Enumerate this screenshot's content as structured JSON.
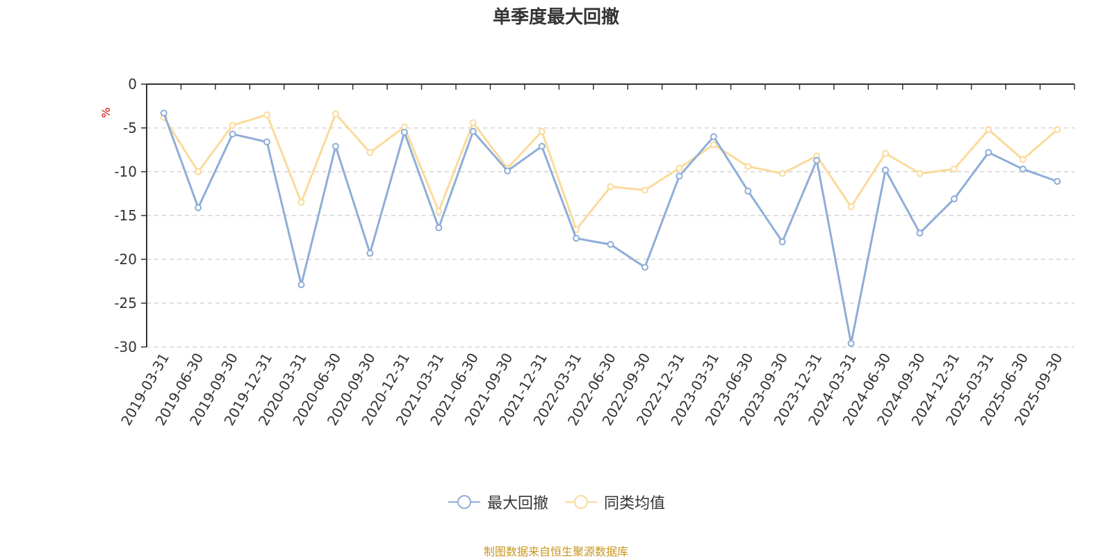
{
  "colors": {
    "series_a": "#8eadd8",
    "series_b": "#fbda9a",
    "axis": "#333333",
    "grid": "#cccccc",
    "unit": "#e00000",
    "source": "#c8951f"
  },
  "chart_data": {
    "type": "line",
    "title": "单季度最大回撤",
    "ylabel": "%",
    "ylim": [
      -30,
      0
    ],
    "yticks": [
      0,
      -5,
      -10,
      -15,
      -20,
      -25,
      -30
    ],
    "grid": "horizontal-dashed",
    "legend_position": "bottom-center",
    "categories": [
      "2019-03-31",
      "2019-06-30",
      "2019-09-30",
      "2019-12-31",
      "2020-03-31",
      "2020-06-30",
      "2020-09-30",
      "2020-12-31",
      "2021-03-31",
      "2021-06-30",
      "2021-09-30",
      "2021-12-31",
      "2022-03-31",
      "2022-06-30",
      "2022-09-30",
      "2022-12-31",
      "2023-03-31",
      "2023-06-30",
      "2023-09-30",
      "2023-12-31",
      "2024-03-31",
      "2024-06-30",
      "2024-09-30",
      "2024-12-31",
      "2025-03-31",
      "2025-06-30",
      "2025-09-30"
    ],
    "series": [
      {
        "name": "最大回撤",
        "values": [
          -3.3,
          -14.1,
          -5.7,
          -6.6,
          -22.9,
          -7.1,
          -19.3,
          -5.5,
          -16.4,
          -5.4,
          -9.9,
          -7.1,
          -17.6,
          -18.3,
          -20.9,
          -10.5,
          -6.0,
          -12.2,
          -18.0,
          -8.7,
          -29.6,
          -9.8,
          -17.0,
          -13.1,
          -7.8,
          -9.7,
          -11.1
        ]
      },
      {
        "name": "同类均值",
        "values": [
          -3.8,
          -10.0,
          -4.7,
          -3.5,
          -13.5,
          -3.4,
          -7.8,
          -4.9,
          -14.5,
          -4.4,
          -9.6,
          -5.4,
          -16.6,
          -11.7,
          -12.1,
          -9.6,
          -6.9,
          -9.4,
          -10.2,
          -8.2,
          -14.0,
          -7.9,
          -10.2,
          -9.7,
          -5.2,
          -8.6,
          -5.2
        ]
      }
    ]
  },
  "footer": {
    "source": "制图数据来自恒生聚源数据库"
  }
}
